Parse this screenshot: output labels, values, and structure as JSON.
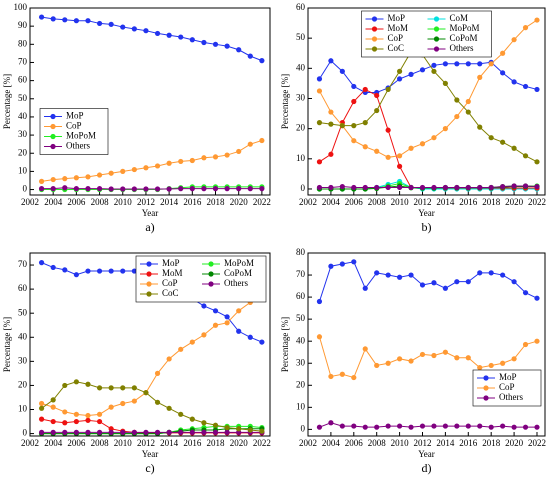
{
  "chart_data": [
    {
      "type": "line",
      "caption": "a)",
      "xlabel": "Year",
      "ylabel": "Percentage [%]",
      "x": [
        2003,
        2004,
        2005,
        2006,
        2007,
        2008,
        2009,
        2010,
        2011,
        2012,
        2013,
        2014,
        2015,
        2016,
        2017,
        2018,
        2019,
        2020,
        2021,
        2022
      ],
      "xlim": [
        2002,
        2022.7
      ],
      "xticks": [
        2002,
        2004,
        2006,
        2008,
        2010,
        2012,
        2014,
        2016,
        2018,
        2020,
        2022
      ],
      "ylim": [
        -3,
        100
      ],
      "yticks": [
        0,
        10,
        20,
        30,
        40,
        50,
        60,
        70,
        80,
        90,
        100
      ],
      "legend": "center left",
      "legend_columns": 1,
      "grid": false,
      "series": [
        {
          "name": "MoP",
          "color": "#2233ee",
          "values": [
            95,
            94,
            93.5,
            93,
            93,
            91.5,
            91,
            89.5,
            88.5,
            87.5,
            86,
            85,
            84,
            82.5,
            81,
            80,
            79,
            77,
            73.5,
            71
          ]
        },
        {
          "name": "CoP",
          "color": "#ff9933",
          "values": [
            4.5,
            5.5,
            6,
            6.5,
            7,
            8,
            9,
            10,
            11,
            12,
            13,
            14.5,
            15.5,
            16,
            17.5,
            18,
            19,
            21,
            25,
            27
          ]
        },
        {
          "name": "MoPoM",
          "color": "#22ee22",
          "values": [
            0,
            0,
            0,
            0,
            0,
            0,
            0,
            0,
            0,
            0,
            0,
            0.5,
            1,
            1.5,
            1.5,
            1.5,
            1.5,
            1.5,
            1.5,
            1.5
          ]
        },
        {
          "name": "Others",
          "color": "#800080",
          "values": [
            0.5,
            0.5,
            1,
            0.5,
            0.5,
            0.5,
            0.3,
            0.3,
            0.3,
            0.3,
            0.3,
            0.3,
            0.5,
            0.5,
            0.5,
            0.5,
            0.5,
            0.5,
            0.5,
            0.5
          ]
        }
      ]
    },
    {
      "type": "line",
      "caption": "b)",
      "xlabel": "Year",
      "ylabel": "Percentage [%]",
      "x": [
        2003,
        2004,
        2005,
        2006,
        2007,
        2008,
        2009,
        2010,
        2011,
        2012,
        2013,
        2014,
        2015,
        2016,
        2017,
        2018,
        2019,
        2020,
        2021,
        2022
      ],
      "xlim": [
        2002,
        2022.7
      ],
      "xticks": [
        2002,
        2004,
        2006,
        2008,
        2010,
        2012,
        2014,
        2016,
        2018,
        2020,
        2022
      ],
      "ylim": [
        -2,
        60
      ],
      "yticks": [
        0,
        10,
        20,
        30,
        40,
        50,
        60
      ],
      "legend": "upper center",
      "legend_columns": 2,
      "grid": false,
      "series": [
        {
          "name": "MoP",
          "color": "#2233ee",
          "values": [
            36.5,
            42.5,
            39,
            34,
            32,
            32,
            33.5,
            36.5,
            38,
            39.5,
            41,
            41.5,
            41.5,
            41.5,
            41.5,
            42,
            38.5,
            35.5,
            34,
            33
          ]
        },
        {
          "name": "CoM",
          "color": "#00e0e0",
          "values": [
            0,
            0,
            0,
            0,
            0,
            0.5,
            1.5,
            2.5,
            0.5,
            0,
            0,
            0,
            0,
            0,
            0,
            0,
            0,
            0,
            0,
            0
          ]
        },
        {
          "name": "MoM",
          "color": "#ee1111",
          "values": [
            9,
            11.5,
            22,
            29,
            33,
            31,
            19.5,
            7.5,
            0.5,
            0.3,
            0.3,
            0.3,
            0.3,
            0.3,
            0.3,
            0.3,
            0.3,
            0.3,
            0.3,
            0.3
          ]
        },
        {
          "name": "MoPoM",
          "color": "#22ee22",
          "values": [
            0,
            0,
            0,
            0,
            0,
            0.3,
            1,
            1.8,
            0.5,
            0.3,
            0.3,
            0.5,
            0.5,
            0.5,
            0.5,
            0.5,
            0.8,
            1,
            1,
            1
          ]
        },
        {
          "name": "CoP",
          "color": "#ff9933",
          "values": [
            32.5,
            25.5,
            21,
            16,
            14,
            12.5,
            10.5,
            11,
            13.5,
            15,
            17,
            20,
            24,
            29,
            37,
            41.5,
            45,
            49.5,
            53.5,
            56
          ]
        },
        {
          "name": "CoPoM",
          "color": "#008800",
          "values": [
            0,
            0,
            0,
            0,
            0,
            0.2,
            0.6,
            1,
            0.4,
            0.3,
            0.3,
            0.4,
            0.4,
            0.4,
            0.4,
            0.4,
            0.6,
            0.8,
            0.8,
            0.8
          ]
        },
        {
          "name": "CoC",
          "color": "#808000",
          "values": [
            22,
            21.5,
            21,
            21,
            22,
            26,
            33,
            39,
            45.5,
            44.5,
            39,
            35,
            29.5,
            25.5,
            20.5,
            17,
            15.5,
            13.5,
            11,
            9
          ]
        },
        {
          "name": "Others",
          "color": "#800080",
          "values": [
            0.5,
            0.5,
            0.8,
            0.5,
            0.5,
            0.5,
            0.5,
            0.5,
            0.5,
            0.5,
            0.5,
            0.5,
            0.5,
            0.5,
            0.5,
            0.5,
            0.8,
            1,
            1,
            0.8
          ]
        }
      ]
    },
    {
      "type": "line",
      "caption": "c)",
      "xlabel": "Year",
      "ylabel": "Percentage [%]",
      "x": [
        2003,
        2004,
        2005,
        2006,
        2007,
        2008,
        2009,
        2010,
        2011,
        2012,
        2013,
        2014,
        2015,
        2016,
        2017,
        2018,
        2019,
        2020,
        2021,
        2022
      ],
      "xlim": [
        2002,
        2022.7
      ],
      "xticks": [
        2002,
        2004,
        2006,
        2008,
        2010,
        2012,
        2014,
        2016,
        2018,
        2020,
        2022
      ],
      "ylim": [
        -1,
        75
      ],
      "yticks": [
        0,
        10,
        20,
        30,
        40,
        50,
        60,
        70
      ],
      "legend": "upper right",
      "legend_columns": 2,
      "grid": false,
      "series": [
        {
          "name": "MoP",
          "color": "#2233ee",
          "values": [
            71,
            69,
            68,
            66,
            67.5,
            67.5,
            67.5,
            67.5,
            67.5,
            67.5,
            64,
            60,
            58,
            56,
            53,
            51,
            48.5,
            42.5,
            40,
            38
          ]
        },
        {
          "name": "MoPoM",
          "color": "#22ee22",
          "values": [
            0,
            0,
            0,
            0,
            0,
            0,
            0,
            0,
            0,
            0,
            0,
            0.5,
            1.5,
            2,
            2.5,
            3,
            3,
            3,
            3,
            2.5
          ]
        },
        {
          "name": "MoM",
          "color": "#ee1111",
          "values": [
            6,
            5,
            4.5,
            5,
            5.5,
            5,
            2,
            1,
            0.5,
            0.3,
            0.3,
            0.3,
            0.3,
            0.3,
            0.3,
            0.3,
            0.3,
            0.3,
            0.3,
            0.3
          ]
        },
        {
          "name": "CoPoM",
          "color": "#008800",
          "values": [
            0,
            0,
            0,
            0,
            0,
            0,
            0,
            0,
            0,
            0,
            0,
            0.5,
            1,
            1.5,
            1.5,
            1.5,
            2,
            2,
            2,
            2
          ]
        },
        {
          "name": "CoP",
          "color": "#ff9933",
          "values": [
            12.5,
            11,
            9,
            8,
            7.5,
            8,
            11,
            12.5,
            13.5,
            17,
            25,
            31,
            35,
            38,
            41,
            45,
            46,
            51,
            54.5,
            57.5
          ]
        },
        {
          "name": "Others",
          "color": "#800080",
          "values": [
            0.5,
            0.5,
            0.5,
            0.5,
            0.5,
            0.5,
            0.5,
            0.5,
            0.5,
            0.5,
            0.5,
            0.5,
            0.5,
            0.5,
            0.5,
            0.5,
            0.5,
            0.5,
            0.5,
            0.5
          ]
        },
        {
          "name": "CoC",
          "color": "#808000",
          "values": [
            10.5,
            14,
            20,
            21.5,
            20.5,
            19,
            19,
            19,
            19,
            17,
            13,
            10.5,
            8,
            6,
            4.5,
            3.5,
            2.5,
            2,
            1.5,
            1
          ]
        }
      ]
    },
    {
      "type": "line",
      "caption": "d)",
      "xlabel": "Year",
      "ylabel": "Percentage [%]",
      "x": [
        2003,
        2004,
        2005,
        2006,
        2007,
        2008,
        2009,
        2010,
        2011,
        2012,
        2013,
        2014,
        2015,
        2016,
        2017,
        2018,
        2019,
        2020,
        2021,
        2022
      ],
      "xlim": [
        2002,
        2022.7
      ],
      "xticks": [
        2002,
        2004,
        2006,
        2008,
        2010,
        2012,
        2014,
        2016,
        2018,
        2020,
        2022
      ],
      "ylim": [
        -3,
        80
      ],
      "yticks": [
        0,
        10,
        20,
        30,
        40,
        50,
        60,
        70,
        80
      ],
      "legend": "lower right",
      "legend_columns": 1,
      "grid": false,
      "series": [
        {
          "name": "MoP",
          "color": "#2233ee",
          "values": [
            58,
            74,
            75,
            76,
            64,
            71,
            70,
            69,
            70,
            65.5,
            66.5,
            64,
            67,
            67,
            71,
            71,
            70,
            67,
            62,
            59.5
          ]
        },
        {
          "name": "CoP",
          "color": "#ff9933",
          "values": [
            42,
            24,
            25,
            23.5,
            36.5,
            29,
            30,
            32,
            31,
            34,
            33.5,
            35,
            32.5,
            32.5,
            28,
            29,
            30,
            32,
            38.5,
            40
          ]
        },
        {
          "name": "Others",
          "color": "#800080",
          "values": [
            1,
            3,
            1.5,
            1.5,
            1,
            1,
            1.5,
            1.5,
            1,
            1.5,
            1.5,
            1.5,
            1.5,
            1.5,
            1.5,
            1,
            1.5,
            1,
            1,
            1
          ]
        }
      ]
    }
  ]
}
